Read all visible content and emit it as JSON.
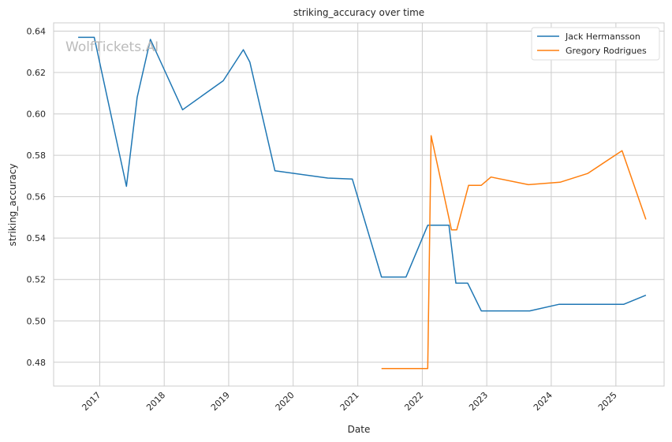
{
  "chart_data": {
    "type": "line",
    "title": "striking_accuracy over time",
    "xlabel": "Date",
    "ylabel": "striking_accuracy",
    "watermark": "WolfTickets.AI",
    "xlim": [
      "2016-04-15",
      "2025-10-01"
    ],
    "ylim": [
      0.4685,
      0.644
    ],
    "x_ticks": [
      "2017-01-01",
      "2018-01-01",
      "2019-01-01",
      "2020-01-01",
      "2021-01-01",
      "2022-01-01",
      "2023-01-01",
      "2024-01-01",
      "2025-01-01"
    ],
    "x_tick_labels": [
      "2017",
      "2018",
      "2019",
      "2020",
      "2021",
      "2022",
      "2023",
      "2024",
      "2025"
    ],
    "y_ticks": [
      0.48,
      0.5,
      0.52,
      0.54,
      0.56,
      0.58,
      0.6,
      0.62,
      0.64
    ],
    "y_tick_labels": [
      "0.48",
      "0.50",
      "0.52",
      "0.54",
      "0.56",
      "0.58",
      "0.60",
      "0.62",
      "0.64"
    ],
    "grid": true,
    "legend_position": "top-right",
    "series": [
      {
        "name": "Jack Hermansson",
        "color": "#1f77b4",
        "points": [
          [
            "2016-09-01",
            0.637
          ],
          [
            "2016-12-01",
            0.637
          ],
          [
            "2017-06-01",
            0.565
          ],
          [
            "2017-08-01",
            0.608
          ],
          [
            "2017-10-15",
            0.636
          ],
          [
            "2018-04-15",
            0.602
          ],
          [
            "2018-12-01",
            0.616
          ],
          [
            "2019-03-25",
            0.631
          ],
          [
            "2019-05-01",
            0.625
          ],
          [
            "2019-09-20",
            0.5725
          ],
          [
            "2020-07-15",
            0.569
          ],
          [
            "2020-12-01",
            0.5685
          ],
          [
            "2021-05-15",
            0.5212
          ],
          [
            "2021-10-01",
            0.5212
          ],
          [
            "2022-02-01",
            0.5462
          ],
          [
            "2022-06-01",
            0.5462
          ],
          [
            "2022-07-10",
            0.5182
          ],
          [
            "2022-09-15",
            0.5182
          ],
          [
            "2022-12-01",
            0.5048
          ],
          [
            "2023-09-01",
            0.5048
          ],
          [
            "2024-02-15",
            0.508
          ],
          [
            "2025-02-15",
            0.508
          ],
          [
            "2025-06-20",
            0.5124
          ]
        ]
      },
      {
        "name": "Gregory Rodrigues",
        "color": "#ff7f0e",
        "points": [
          [
            "2021-05-15",
            0.477
          ],
          [
            "2022-02-01",
            0.477
          ],
          [
            "2022-02-20",
            0.5895
          ],
          [
            "2022-06-15",
            0.544
          ],
          [
            "2022-07-15",
            0.544
          ],
          [
            "2022-09-20",
            0.5655
          ],
          [
            "2022-12-01",
            0.5655
          ],
          [
            "2023-01-25",
            0.5695
          ],
          [
            "2023-08-25",
            0.5658
          ],
          [
            "2024-02-20",
            0.567
          ],
          [
            "2024-07-25",
            0.5712
          ],
          [
            "2025-02-05",
            0.5822
          ],
          [
            "2025-06-20",
            0.549
          ]
        ]
      }
    ]
  }
}
